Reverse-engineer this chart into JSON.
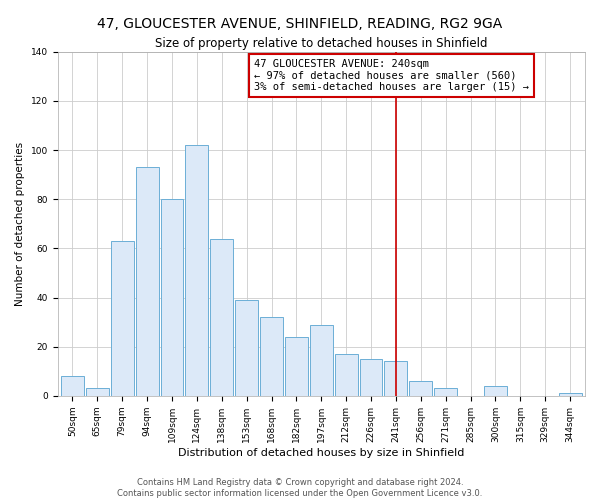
{
  "title1": "47, GLOUCESTER AVENUE, SHINFIELD, READING, RG2 9GA",
  "title2": "Size of property relative to detached houses in Shinfield",
  "xlabel": "Distribution of detached houses by size in Shinfield",
  "ylabel": "Number of detached properties",
  "bin_labels": [
    "50sqm",
    "65sqm",
    "79sqm",
    "94sqm",
    "109sqm",
    "124sqm",
    "138sqm",
    "153sqm",
    "168sqm",
    "182sqm",
    "197sqm",
    "212sqm",
    "226sqm",
    "241sqm",
    "256sqm",
    "271sqm",
    "285sqm",
    "300sqm",
    "315sqm",
    "329sqm",
    "344sqm"
  ],
  "bar_heights": [
    8,
    3,
    63,
    93,
    80,
    102,
    64,
    39,
    32,
    24,
    29,
    17,
    15,
    14,
    6,
    3,
    0,
    4,
    0,
    0,
    1
  ],
  "bar_color": "#dce9f8",
  "bar_edgecolor": "#6baed6",
  "vline_x_index": 13,
  "vline_color": "#cc0000",
  "annotation_box_text": "47 GLOUCESTER AVENUE: 240sqm\n← 97% of detached houses are smaller (560)\n3% of semi-detached houses are larger (15) →",
  "annotation_box_facecolor": "#ffffff",
  "annotation_box_edgecolor": "#cc0000",
  "ylim": [
    0,
    140
  ],
  "yticks": [
    0,
    20,
    40,
    60,
    80,
    100,
    120,
    140
  ],
  "footer1": "Contains HM Land Registry data © Crown copyright and database right 2024.",
  "footer2": "Contains public sector information licensed under the Open Government Licence v3.0.",
  "title1_fontsize": 10,
  "title2_fontsize": 8.5,
  "xlabel_fontsize": 8,
  "ylabel_fontsize": 7.5,
  "tick_fontsize": 6.5,
  "footer_fontsize": 6,
  "annotation_fontsize": 7.5,
  "background_color": "#ffffff",
  "grid_color": "#cccccc"
}
